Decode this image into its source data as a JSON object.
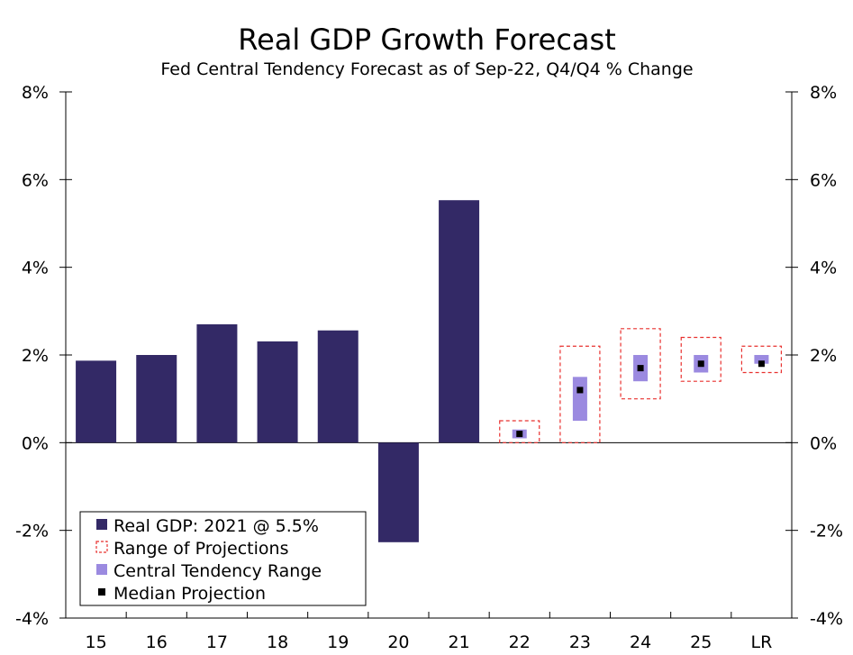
{
  "chart_data": {
    "type": "bar",
    "title": "Real GDP Growth Forecast",
    "subtitle": "Fed Central Tendency Forecast as of Sep-22, Q4/Q4 % Change",
    "xlabel": "",
    "ylabel": "",
    "ylim": [
      -4,
      8
    ],
    "yticks": [
      8,
      6,
      4,
      2,
      0,
      -2,
      -4
    ],
    "ytick_labels": [
      "8%",
      "6%",
      "4%",
      "2%",
      "0%",
      "-2%",
      "-4%"
    ],
    "categories": [
      "15",
      "16",
      "17",
      "18",
      "19",
      "20",
      "21",
      "22",
      "23",
      "24",
      "25",
      "LR"
    ],
    "series": [
      {
        "name": "Real GDP: 2021 @ 5.5%",
        "type": "bar",
        "color": "#332966",
        "values": [
          1.87,
          2.0,
          2.7,
          2.31,
          2.56,
          -2.27,
          5.53,
          null,
          null,
          null,
          null,
          null
        ]
      },
      {
        "name": "Range of Projections",
        "type": "range-box",
        "color": "#e8312f",
        "low": [
          null,
          null,
          null,
          null,
          null,
          null,
          null,
          0.0,
          0.0,
          1.0,
          1.4,
          1.6
        ],
        "high": [
          null,
          null,
          null,
          null,
          null,
          null,
          null,
          0.5,
          2.2,
          2.6,
          2.4,
          2.2
        ]
      },
      {
        "name": "Central Tendency Range",
        "type": "range-bar",
        "color": "#9b8ae0",
        "low": [
          null,
          null,
          null,
          null,
          null,
          null,
          null,
          0.1,
          0.5,
          1.4,
          1.6,
          1.8
        ],
        "high": [
          null,
          null,
          null,
          null,
          null,
          null,
          null,
          0.3,
          1.5,
          2.0,
          2.0,
          2.0
        ]
      },
      {
        "name": "Median Projection",
        "type": "marker",
        "color": "#000000",
        "values": [
          null,
          null,
          null,
          null,
          null,
          null,
          null,
          0.2,
          1.2,
          1.7,
          1.8,
          1.8
        ]
      }
    ],
    "legend": {
      "position": "bottom-left",
      "entries": [
        "Real GDP: 2021 @ 5.5%",
        "Range of Projections",
        "Central Tendency Range",
        "Median Projection"
      ]
    },
    "grid": false
  }
}
